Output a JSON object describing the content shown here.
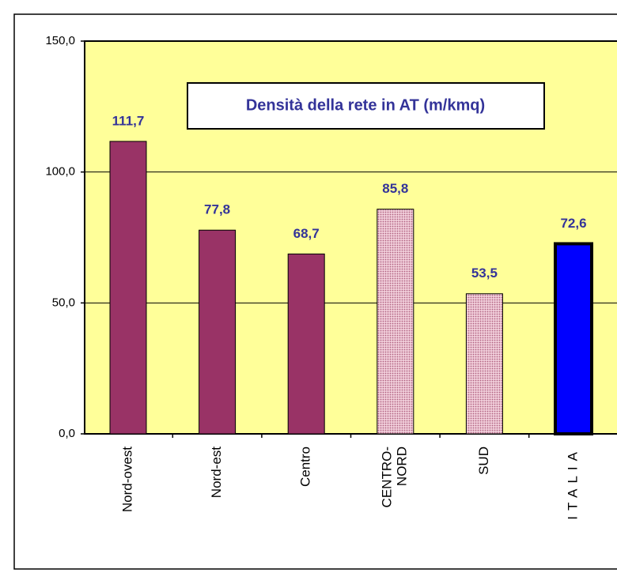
{
  "chart_data": {
    "type": "bar",
    "title": "Densità della rete in AT (m/kmq)",
    "categories": [
      "Nord-ovest",
      "Nord-est",
      "Centro",
      "CENTRO-\nNORD",
      "SUD",
      "ITALIA"
    ],
    "values": [
      111.7,
      77.8,
      68.7,
      85.8,
      53.5,
      72.6
    ],
    "value_labels": [
      "111,7",
      "77,8",
      "68,7",
      "85,8",
      "53,5",
      "72,6"
    ],
    "colors": [
      "#993366",
      "#993366",
      "#993366",
      "#ff99cc",
      "#ff99cc",
      "#0000ff"
    ],
    "patterned": [
      false,
      false,
      false,
      true,
      true,
      false
    ],
    "ylim": [
      0,
      150
    ],
    "yticks": [
      {
        "value": 0,
        "label": "0,0"
      },
      {
        "value": 50,
        "label": "50,0"
      },
      {
        "value": 100,
        "label": "100,0"
      },
      {
        "value": 150,
        "label": "150,0"
      }
    ],
    "grid": true
  }
}
